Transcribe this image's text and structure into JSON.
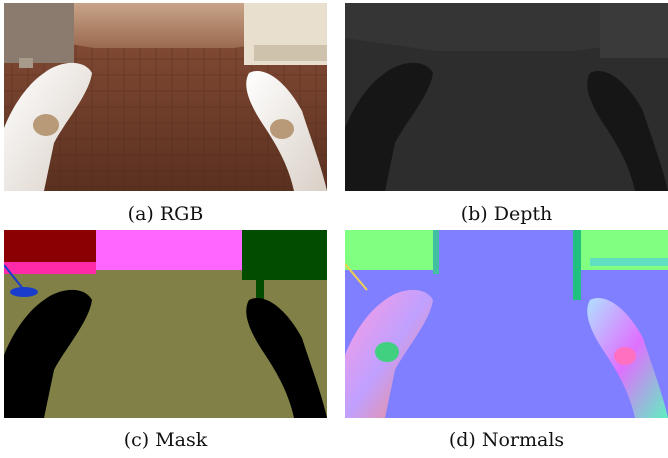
{
  "figure": {
    "panels": [
      {
        "id": "rgb",
        "caption": "(a) RGB"
      },
      {
        "id": "depth",
        "caption": "(b) Depth"
      },
      {
        "id": "mask",
        "caption": "(c) Mask"
      },
      {
        "id": "normals",
        "caption": "(d) Normals"
      }
    ]
  },
  "colors": {
    "floor_wood": "#6e3f2a",
    "depth_bg": "#2a2a2a",
    "mask_floor": "#808047",
    "mask_wall": "#ff66ff",
    "mask_furniture": "#8b0000",
    "mask_chair": "#004d00",
    "mask_hands": "#000000",
    "normals_floor": "#7f7fff",
    "normals_furniture": "#80ff80"
  }
}
